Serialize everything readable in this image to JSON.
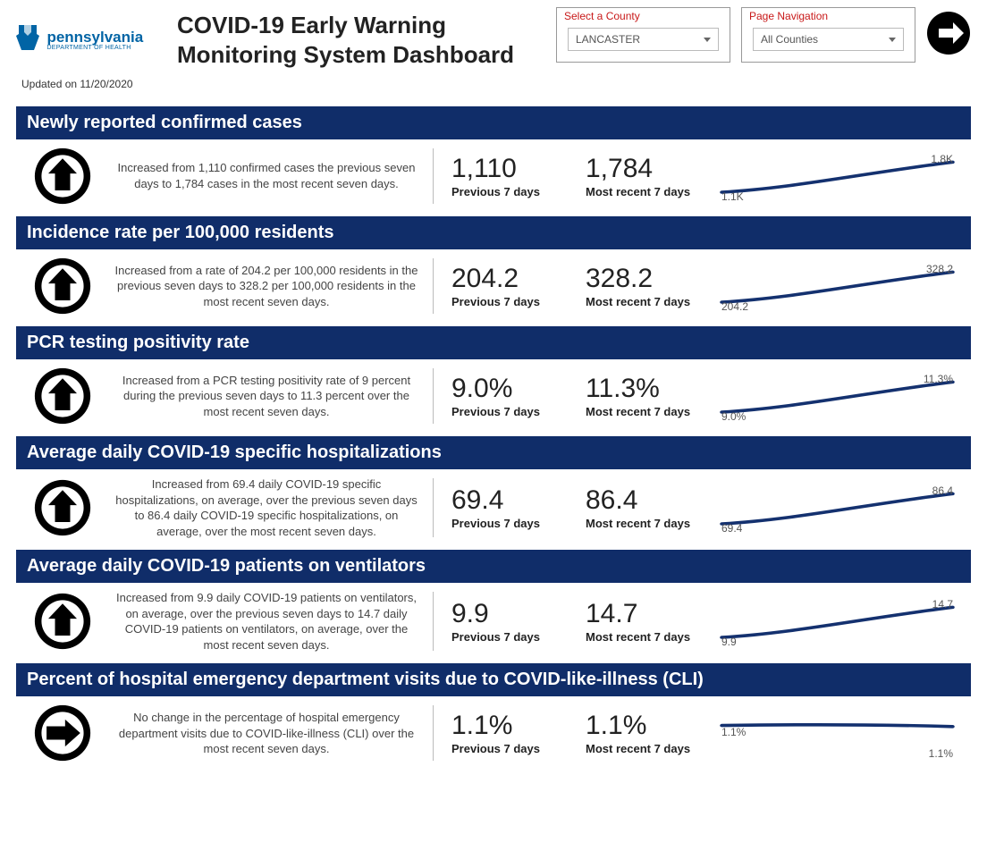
{
  "header": {
    "logo": {
      "title": "pennsylvania",
      "subtitle": "DEPARTMENT OF HEALTH"
    },
    "updated": "Updated on 11/20/2020",
    "title": "COVID-19 Early Warning Monitoring System Dashboard",
    "county_selector": {
      "label": "Select a County",
      "value": "LANCASTER"
    },
    "nav_selector": {
      "label": "Page Navigation",
      "value": "All Counties"
    }
  },
  "colors": {
    "panel_header_bg": "#102d69",
    "panel_header_text": "#ffffff",
    "selector_label": "#c81818",
    "logo_blue": "#0164a5",
    "spark_line": "#14316f"
  },
  "metric_labels": {
    "prev": "Previous 7 days",
    "recent": "Most recent 7 days"
  },
  "panels": [
    {
      "id": "cases",
      "title": "Newly reported confirmed cases",
      "trend": "up",
      "description": "Increased from 1,110 confirmed cases the previous seven days to 1,784 cases in the most recent seven days.",
      "prev_value": "1,110",
      "recent_value": "1,784",
      "spark": {
        "type": "up",
        "left_label": "1.1K",
        "right_label": "1.8K"
      }
    },
    {
      "id": "incidence",
      "title": "Incidence rate per 100,000 residents",
      "trend": "up",
      "description": "Increased from a rate of 204.2 per 100,000 residents in the previous seven days to 328.2 per 100,000 residents in the most recent seven days.",
      "prev_value": "204.2",
      "recent_value": "328.2",
      "spark": {
        "type": "up",
        "left_label": "204.2",
        "right_label": "328.2"
      }
    },
    {
      "id": "pcr",
      "title": "PCR testing positivity rate",
      "trend": "up",
      "description": "Increased from a PCR testing positivity rate of 9 percent during the previous seven days to 11.3 percent over the most recent seven days.",
      "prev_value": "9.0%",
      "recent_value": "11.3%",
      "spark": {
        "type": "up",
        "left_label": "9.0%",
        "right_label": "11.3%"
      }
    },
    {
      "id": "hosp",
      "title": "Average daily COVID-19 specific hospitalizations",
      "trend": "up",
      "description": "Increased from 69.4 daily COVID-19 specific hospitalizations, on average, over the previous seven days to 86.4 daily COVID-19 specific hospitalizations, on average, over the most recent seven days.",
      "prev_value": "69.4",
      "recent_value": "86.4",
      "spark": {
        "type": "up",
        "left_label": "69.4",
        "right_label": "86.4"
      }
    },
    {
      "id": "vent",
      "title": "Average daily COVID-19 patients on ventilators",
      "trend": "up",
      "description": "Increased from 9.9 daily COVID-19 patients on ventilators, on average, over the previous seven days to 14.7 daily COVID-19 patients on ventilators, on average, over the most recent seven days.",
      "prev_value": "9.9",
      "recent_value": "14.7",
      "spark": {
        "type": "up",
        "left_label": "9.9",
        "right_label": "14.7"
      }
    },
    {
      "id": "cli",
      "title": "Percent of hospital emergency department visits due to COVID-like-illness (CLI)",
      "trend": "flat",
      "description": "No change in the percentage of hospital emergency department visits due to COVID-like-illness (CLI) over the most recent seven days.",
      "prev_value": "1.1%",
      "recent_value": "1.1%",
      "spark": {
        "type": "flat",
        "left_label": "1.1%",
        "right_label": "1.1%"
      }
    }
  ]
}
